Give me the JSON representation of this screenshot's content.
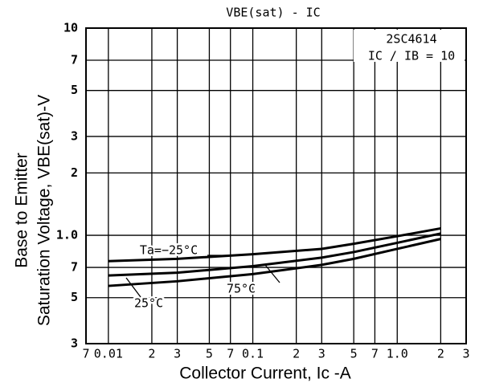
{
  "chart_data": {
    "type": "line",
    "title": "VBE(sat) - IC",
    "annotations": [
      "2SC4614",
      "IC / IB = 10"
    ],
    "ylabel": [
      "Base to Emitter",
      "Saturation Voltage, VBE(sat)-V"
    ],
    "xlabel": "Collector Current, Ic -A",
    "log_x": true,
    "log_y": true,
    "grid": true,
    "xlim": [
      0.007,
      3
    ],
    "ylim": [
      0.3,
      10
    ],
    "xticks": [
      {
        "value": 0.007,
        "label": "7"
      },
      0.01,
      {
        "value": 0.02,
        "label": "2"
      },
      {
        "value": 0.03,
        "label": "3"
      },
      {
        "value": 0.05,
        "label": "5"
      },
      {
        "value": 0.07,
        "label": "7"
      },
      0.1,
      {
        "value": 0.2,
        "label": "2"
      },
      {
        "value": 0.3,
        "label": "3"
      },
      {
        "value": 0.5,
        "label": "5"
      },
      {
        "value": 0.7,
        "label": "7"
      },
      {
        "value": 1,
        "label": "1.0"
      },
      2,
      3
    ],
    "yticks": [
      {
        "value": 0.3,
        "label": "3"
      },
      {
        "value": 0.5,
        "label": "5"
      },
      {
        "value": 0.7,
        "label": "7"
      },
      {
        "value": 1,
        "label": "1.0"
      },
      2,
      3,
      5,
      7,
      10
    ],
    "x": [
      0.01,
      0.03,
      0.1,
      0.3,
      0.5,
      1,
      2
    ],
    "series": [
      {
        "name": "Ta=−25°C",
        "color": "#000000",
        "values": [
          0.75,
          0.77,
          0.81,
          0.86,
          0.91,
          0.99,
          1.08
        ]
      },
      {
        "name": "25°C",
        "color": "#000000",
        "values": [
          0.64,
          0.66,
          0.71,
          0.78,
          0.83,
          0.92,
          1.02
        ]
      },
      {
        "name": "75°C",
        "color": "#000000",
        "values": [
          0.57,
          0.6,
          0.65,
          0.72,
          0.77,
          0.86,
          0.96
        ]
      }
    ]
  }
}
